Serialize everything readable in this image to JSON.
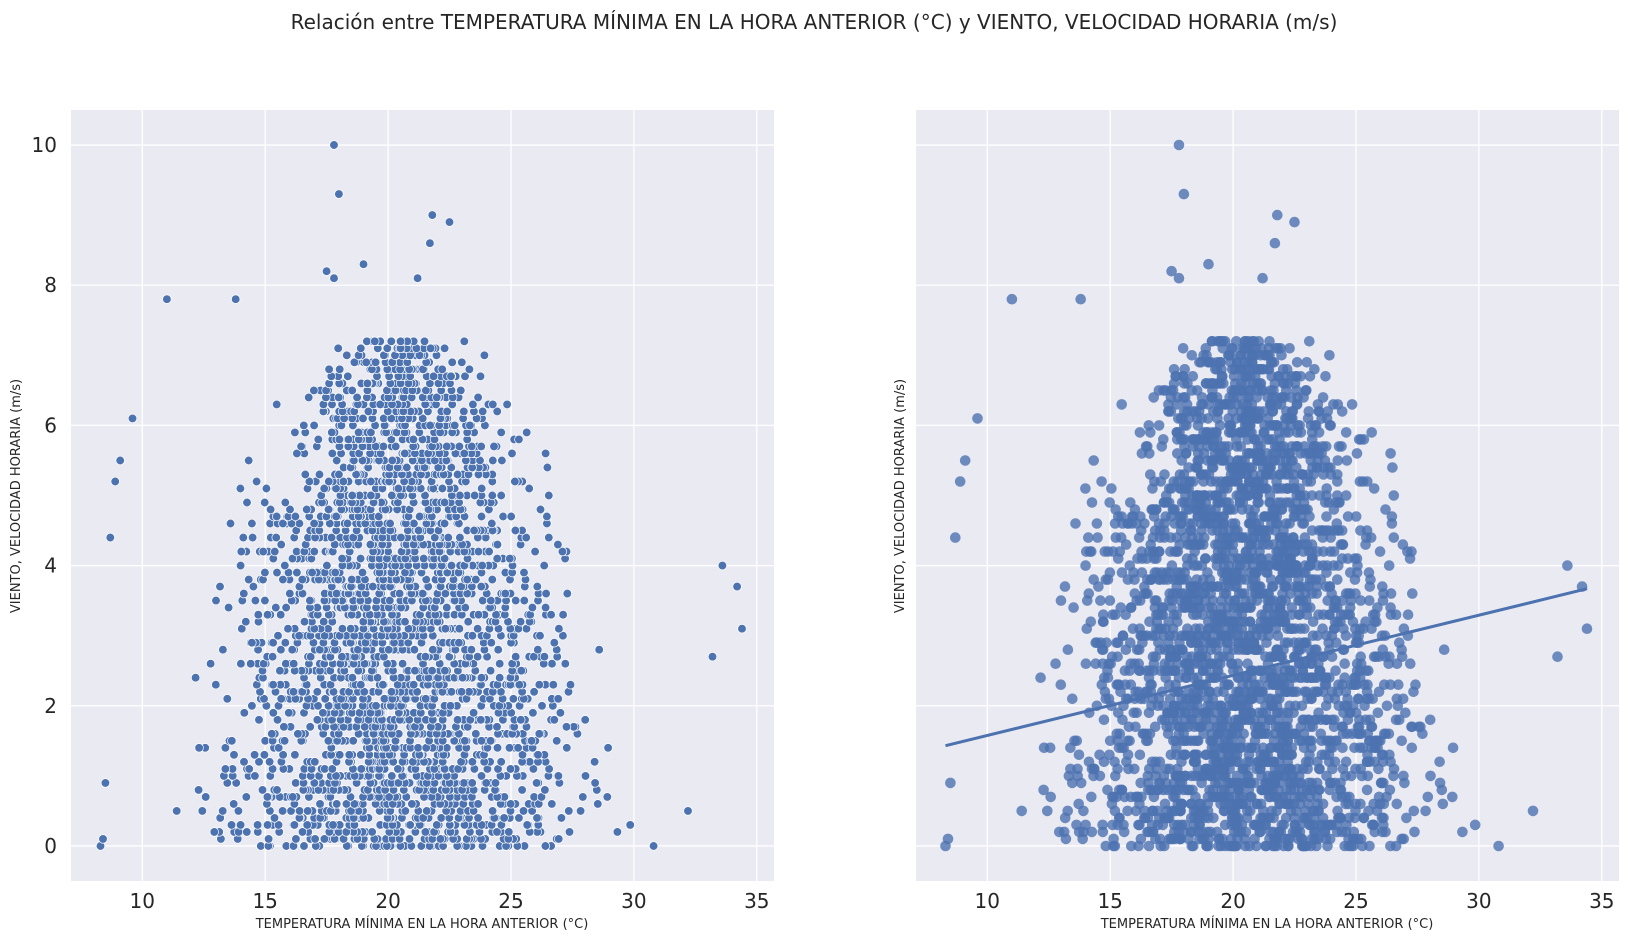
{
  "figure": {
    "title": "Relación entre TEMPERATURA MÍNIMA EN LA HORA ANTERIOR (°C) y VIENTO, VELOCIDAD HORARIA (m/s)"
  },
  "colors": {
    "point": "#4c72b0",
    "point_edge": "#ffffff",
    "reg_fill": "#4c72b0",
    "background": "#eaeaf2",
    "grid": "#ffffff"
  },
  "chart_data": [
    {
      "type": "scatter",
      "name": "scatterplot",
      "title": "",
      "xlabel": "TEMPERATURA MÍNIMA EN LA HORA ANTERIOR (°C)",
      "ylabel": "VIENTO, VELOCIDAD HORARIA (m/s)",
      "xlim": [
        7.1,
        35.7
      ],
      "ylim": [
        -0.5,
        10.5
      ],
      "xticks": [
        10,
        15,
        20,
        25,
        30,
        35
      ],
      "yticks": [
        0,
        2,
        4,
        6,
        8,
        10
      ],
      "grid": true,
      "y_step": 0.1,
      "density_envelope": {
        "x_center": 20.5,
        "x_half_width_at_y0": 10.3,
        "y_peak": 7.2
      },
      "outliers": [
        [
          17.8,
          10.0
        ],
        [
          18.0,
          9.3
        ],
        [
          21.8,
          9.0
        ],
        [
          22.5,
          8.9
        ],
        [
          21.7,
          8.6
        ],
        [
          19.0,
          8.3
        ],
        [
          17.5,
          8.2
        ],
        [
          17.8,
          8.1
        ],
        [
          21.2,
          8.1
        ],
        [
          11.0,
          7.8
        ],
        [
          13.8,
          7.8
        ],
        [
          34.2,
          3.7
        ],
        [
          33.6,
          4.0
        ],
        [
          34.4,
          3.1
        ],
        [
          8.3,
          0.0
        ],
        [
          8.4,
          0.1
        ],
        [
          8.5,
          0.9
        ],
        [
          8.7,
          4.4
        ],
        [
          8.9,
          5.2
        ],
        [
          9.1,
          5.5
        ],
        [
          9.6,
          6.1
        ],
        [
          32.2,
          0.5
        ],
        [
          33.2,
          2.7
        ],
        [
          30.8,
          0.0
        ]
      ]
    },
    {
      "type": "scatter",
      "name": "regplot",
      "title": "",
      "xlabel": "TEMPERATURA MÍNIMA EN LA HORA ANTERIOR (°C)",
      "ylabel": "VIENTO, VELOCIDAD HORARIA (m/s)",
      "xlim": [
        7.1,
        35.7
      ],
      "ylim": [
        -0.5,
        10.5
      ],
      "xticks": [
        10,
        15,
        20,
        25,
        30,
        35
      ],
      "yticks": [
        0,
        2,
        4,
        6,
        8,
        10
      ],
      "grid": true,
      "regression": {
        "x_range": [
          8.3,
          34.4
        ],
        "y_start": 1.43,
        "y_end": 3.67
      }
    }
  ]
}
